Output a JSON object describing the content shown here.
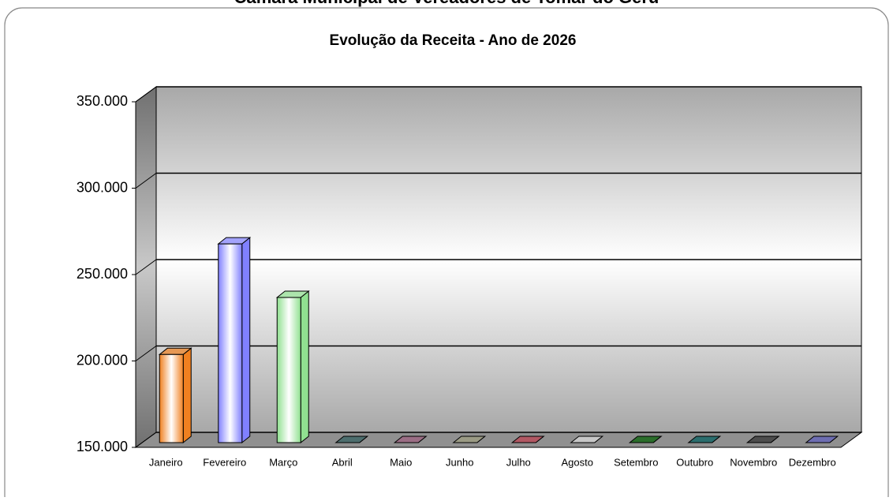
{
  "header": {
    "title": "Câmara Municipal de Vereadores de Tomar do Geru"
  },
  "chart_data": {
    "type": "bar3d",
    "title": "Evolução da Receita - Ano de 2026",
    "categories": [
      "Janeiro",
      "Fevereiro",
      "Março",
      "Abril",
      "Maio",
      "Junho",
      "Julho",
      "Agosto",
      "Setembro",
      "Outubro",
      "Novembro",
      "Dezembro"
    ],
    "values": [
      201000,
      265000,
      234000,
      0,
      0,
      0,
      0,
      0,
      0,
      0,
      0,
      0
    ],
    "colors": [
      "#f08020",
      "#8080ff",
      "#90e090",
      "#306060",
      "#a06080",
      "#a0a080",
      "#c04050",
      "#e0e0e0",
      "#006000",
      "#006060",
      "#303030",
      "#6060c0"
    ],
    "ylim": [
      150000,
      350000
    ],
    "yticks": [
      {
        "value": 150000,
        "label": "150.000"
      },
      {
        "value": 200000,
        "label": "200.000"
      },
      {
        "value": 250000,
        "label": "250.000"
      },
      {
        "value": 300000,
        "label": "300.000"
      },
      {
        "value": 350000,
        "label": "350.000"
      }
    ],
    "grid": true
  }
}
